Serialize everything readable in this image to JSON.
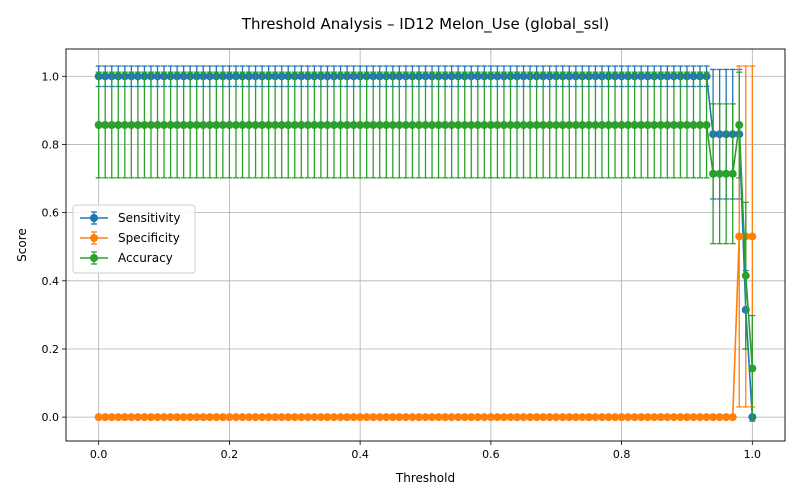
{
  "chart_data": {
    "type": "line",
    "title": "Threshold Analysis – ID12 Melon_Use (global_ssl)",
    "xlabel": "Threshold",
    "ylabel": "Score",
    "xlim": [
      -0.05,
      1.05
    ],
    "ylim": [
      -0.07,
      1.08
    ],
    "xticks": [
      0.0,
      0.2,
      0.4,
      0.6,
      0.8,
      1.0
    ],
    "xtick_labels": [
      "0.0",
      "0.2",
      "0.4",
      "0.6",
      "0.8",
      "1.0"
    ],
    "yticks": [
      0.0,
      0.2,
      0.4,
      0.6,
      0.8,
      1.0
    ],
    "ytick_labels": [
      "0.0",
      "0.2",
      "0.4",
      "0.6",
      "0.8",
      "1.0"
    ],
    "grid": true,
    "legend_position": "center-left",
    "error_bars": true,
    "markers": "circle",
    "threshold_grid": {
      "start": 0.0,
      "stop": 0.99,
      "step": 0.01,
      "extra": [
        1.0
      ]
    },
    "series": [
      {
        "name": "Sensitivity",
        "color": "#1f77b4",
        "segments": [
          {
            "from": 0.0,
            "to": 0.93,
            "value": 1.0,
            "error": 0.03
          },
          {
            "from": 0.94,
            "to": 0.98,
            "value": 0.83,
            "error": 0.19
          }
        ],
        "points": [
          [
            0.99,
            0.315,
            0.115
          ],
          [
            1.0,
            0.0,
            0.0
          ]
        ]
      },
      {
        "name": "Specificity",
        "color": "#ff7f0e",
        "segments": [
          {
            "from": 0.0,
            "to": 0.97,
            "value": 0.0,
            "error": 0.0
          }
        ],
        "points": [
          [
            0.98,
            0.53,
            0.5
          ],
          [
            0.99,
            0.53,
            0.5
          ],
          [
            1.0,
            0.53,
            0.5
          ]
        ]
      },
      {
        "name": "Accuracy",
        "color": "#2ca02c",
        "segments": [
          {
            "from": 0.0,
            "to": 0.93,
            "value": 0.857,
            "error": 0.155
          },
          {
            "from": 0.94,
            "to": 0.97,
            "value": 0.714,
            "error": 0.205
          }
        ],
        "points": [
          [
            0.98,
            0.857,
            0.155
          ],
          [
            0.99,
            0.415,
            0.215
          ],
          [
            1.0,
            0.143,
            0.155
          ]
        ]
      }
    ]
  }
}
